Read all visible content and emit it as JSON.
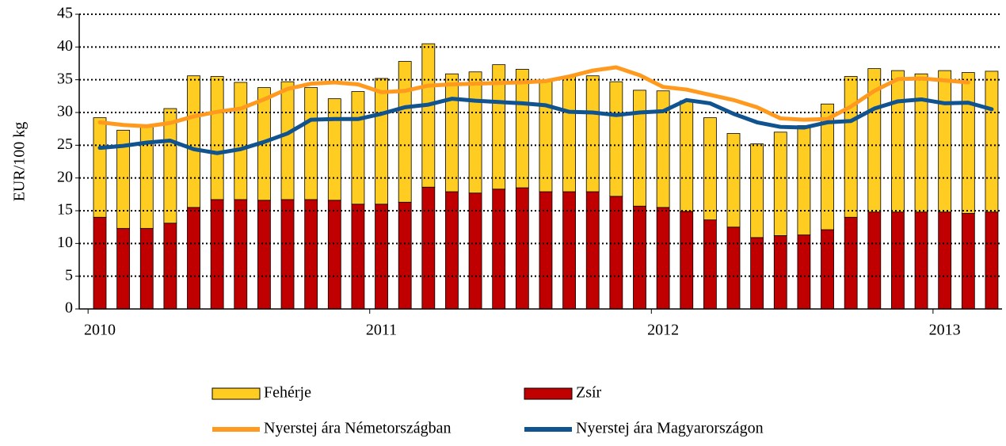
{
  "chart_data": {
    "type": "bar",
    "stacked": true,
    "y_label": "EUR/100 kg",
    "categories": [
      "2010",
      null,
      null,
      null,
      null,
      null,
      null,
      null,
      null,
      null,
      null,
      null,
      "2011",
      null,
      null,
      null,
      null,
      null,
      null,
      null,
      null,
      null,
      null,
      null,
      "2012",
      null,
      null,
      null,
      null,
      null,
      null,
      null,
      null,
      null,
      null,
      null,
      "2013",
      null,
      null
    ],
    "ylim": [
      0,
      45
    ],
    "yticks": [
      0,
      5,
      10,
      15,
      20,
      25,
      30,
      35,
      40,
      45
    ],
    "grid": true,
    "series": [
      {
        "name": "Zsír",
        "type": "bar",
        "color": "#c00000",
        "values": [
          14.0,
          12.3,
          12.3,
          13.1,
          15.5,
          16.7,
          16.7,
          16.6,
          16.7,
          16.7,
          16.6,
          16.0,
          16.0,
          16.3,
          18.6,
          17.9,
          17.7,
          18.3,
          18.5,
          17.9,
          17.9,
          17.9,
          17.2,
          15.7,
          15.5,
          14.9,
          13.6,
          12.5,
          10.9,
          11.2,
          11.3,
          12.1,
          14.0,
          14.8,
          14.8,
          14.8,
          14.8,
          14.6,
          14.8
        ]
      },
      {
        "name": "Fehérje",
        "type": "bar",
        "color": "#ffcc22",
        "values": [
          15.2,
          15.0,
          15.5,
          17.5,
          20.1,
          18.8,
          17.9,
          17.2,
          18.0,
          17.1,
          15.5,
          17.2,
          19.2,
          21.5,
          21.9,
          18.0,
          18.5,
          19.0,
          18.1,
          17.0,
          17.6,
          17.7,
          17.5,
          17.7,
          17.8,
          16.9,
          15.6,
          14.3,
          14.3,
          15.8,
          16.7,
          19.2,
          21.5,
          21.9,
          21.6,
          21.1,
          21.6,
          21.5,
          21.5
        ]
      },
      {
        "name": "Nyerstej ára Németországban",
        "type": "line",
        "color": "#ff9a1e",
        "values": [
          28.5,
          28.1,
          27.9,
          28.4,
          29.4,
          30.1,
          30.6,
          32.0,
          33.6,
          34.4,
          34.6,
          34.3,
          33.1,
          33.3,
          34.1,
          34.3,
          34.4,
          34.5,
          34.6,
          34.8,
          35.5,
          36.4,
          36.9,
          35.7,
          33.9,
          33.5,
          32.7,
          31.9,
          30.8,
          29.1,
          28.9,
          29.0,
          30.9,
          33.3,
          35.1,
          35.2,
          34.9,
          34.6,
          null
        ]
      },
      {
        "name": "Nyerstej ára Magyarországon",
        "type": "line",
        "color": "#10538f",
        "values": [
          24.6,
          24.9,
          25.4,
          25.7,
          24.4,
          23.8,
          24.4,
          25.5,
          26.8,
          28.9,
          29.0,
          29.0,
          29.8,
          30.8,
          31.2,
          32.1,
          31.8,
          31.6,
          31.4,
          31.1,
          30.1,
          30.0,
          29.6,
          30.0,
          30.2,
          31.9,
          31.4,
          29.8,
          28.5,
          27.8,
          27.7,
          28.5,
          28.7,
          30.6,
          31.7,
          32.0,
          31.4,
          31.5,
          30.5
        ]
      }
    ]
  }
}
